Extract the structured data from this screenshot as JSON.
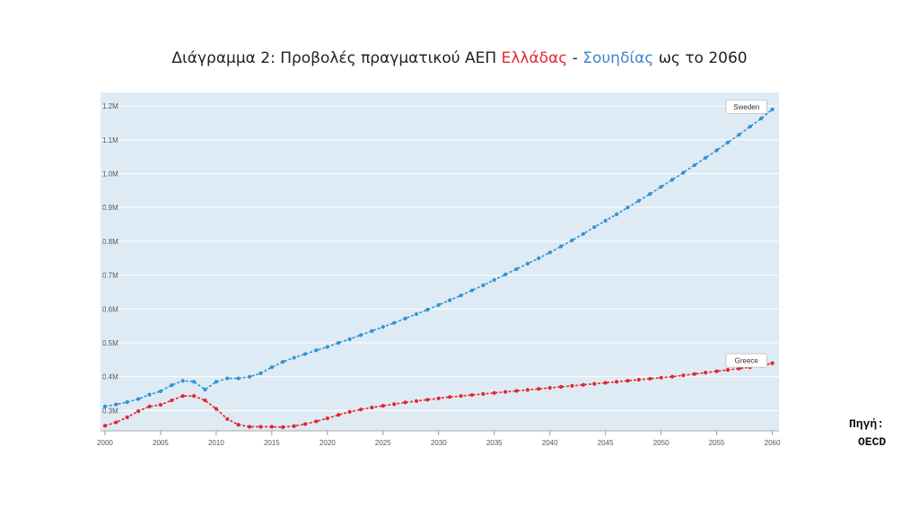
{
  "title": {
    "prefix": "Διάγραμμα 2: Προβολές πραγματικού ΑΕΠ ",
    "country1": "Ελλάδας",
    "sep": " - ",
    "country2": "Σουηδίας",
    "suffix": " ως το 2060"
  },
  "source": {
    "label": "Πηγή:",
    "value": "OECD"
  },
  "colors": {
    "plot_bg": "#deebf4",
    "greece": "#e3262f",
    "sweden": "#2e93d6",
    "grid": "#ffffff",
    "title_greece": "#e3262f",
    "title_sweden": "#3e86c9"
  },
  "chart_data": {
    "type": "line",
    "x_ticks": [
      2000,
      2005,
      2010,
      2015,
      2020,
      2025,
      2030,
      2035,
      2040,
      2045,
      2050,
      2055,
      2060
    ],
    "y_ticks": [
      0.3,
      0.4,
      0.5,
      0.6,
      0.7,
      0.8,
      0.9,
      1.0,
      1.1,
      1.2
    ],
    "y_tick_labels": [
      "0.3M",
      "0.4M",
      "0.5M",
      "0.6M",
      "0.7M",
      "0.8M",
      "0.9M",
      "1.0M",
      "1.1M",
      "1.2M"
    ],
    "xlim": [
      1999.6,
      2060.6
    ],
    "ylim": [
      0.24,
      1.24
    ],
    "series": [
      {
        "name": "Sweden",
        "legend": "Sweden",
        "color": "#2e93d6",
        "x_start": 2000,
        "values": [
          0.312,
          0.318,
          0.325,
          0.334,
          0.347,
          0.357,
          0.375,
          0.388,
          0.385,
          0.362,
          0.385,
          0.395,
          0.395,
          0.4,
          0.41,
          0.428,
          0.444,
          0.456,
          0.467,
          0.478,
          0.488,
          0.5,
          0.511,
          0.523,
          0.535,
          0.547,
          0.559,
          0.572,
          0.585,
          0.598,
          0.612,
          0.626,
          0.64,
          0.655,
          0.67,
          0.686,
          0.702,
          0.718,
          0.734,
          0.75,
          0.767,
          0.785,
          0.803,
          0.822,
          0.842,
          0.861,
          0.88,
          0.9,
          0.92,
          0.94,
          0.961,
          0.982,
          1.003,
          1.025,
          1.047,
          1.069,
          1.092,
          1.115,
          1.139,
          1.163,
          1.19
        ]
      },
      {
        "name": "Greece",
        "legend": "Greece",
        "color": "#e3262f",
        "x_start": 2000,
        "values": [
          0.255,
          0.265,
          0.28,
          0.298,
          0.312,
          0.317,
          0.33,
          0.343,
          0.343,
          0.33,
          0.305,
          0.275,
          0.258,
          0.252,
          0.252,
          0.252,
          0.251,
          0.254,
          0.26,
          0.268,
          0.277,
          0.287,
          0.296,
          0.303,
          0.309,
          0.314,
          0.319,
          0.324,
          0.328,
          0.332,
          0.336,
          0.34,
          0.343,
          0.346,
          0.349,
          0.352,
          0.355,
          0.358,
          0.361,
          0.364,
          0.367,
          0.37,
          0.373,
          0.376,
          0.379,
          0.382,
          0.385,
          0.388,
          0.391,
          0.394,
          0.397,
          0.4,
          0.404,
          0.408,
          0.412,
          0.416,
          0.42,
          0.424,
          0.428,
          0.432,
          0.44
        ]
      }
    ]
  }
}
